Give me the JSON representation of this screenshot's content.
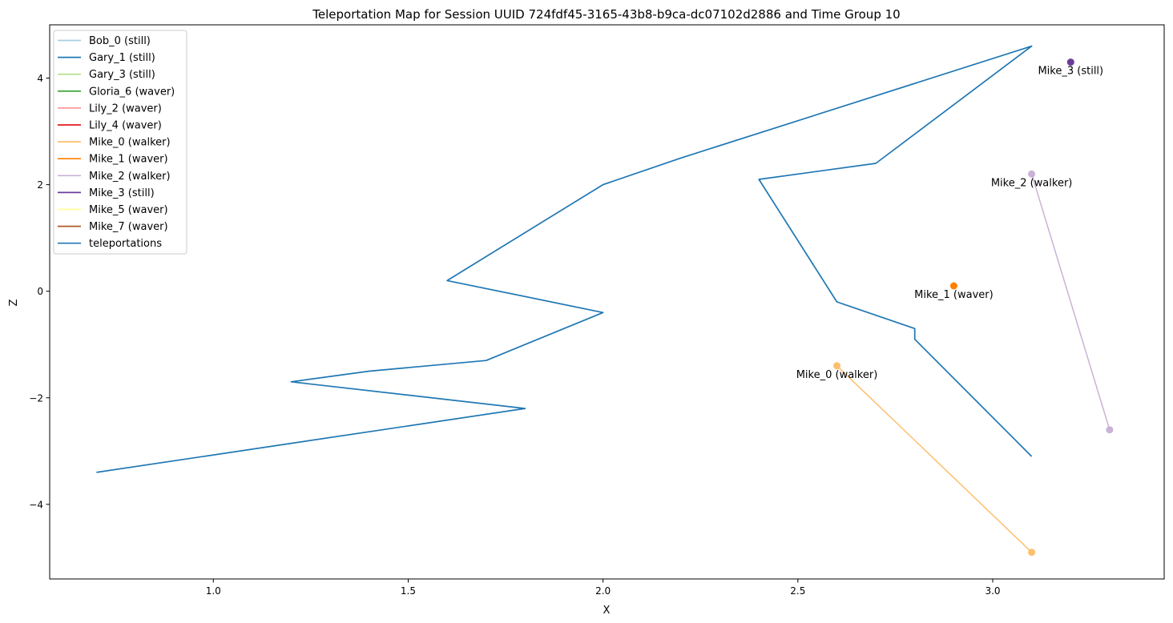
{
  "chart_data": {
    "type": "line",
    "title": "Teleportation Map for Session UUID 724fdf45-3165-43b8-b9ca-dc07102d2886 and Time Group 10",
    "xlabel": "X",
    "ylabel": "Z",
    "xlim": [
      0.58,
      3.44
    ],
    "ylim": [
      -5.4,
      5.0
    ],
    "xticks": [
      1.0,
      1.5,
      2.0,
      2.5,
      3.0
    ],
    "xtick_labels": [
      "1.0",
      "1.5",
      "2.0",
      "2.5",
      "3.0"
    ],
    "yticks": [
      -4,
      -2,
      0,
      2,
      4
    ],
    "ytick_labels": [
      "−4",
      "−2",
      "0",
      "2",
      "4"
    ],
    "grid": false,
    "legend_position": "top-left",
    "series": [
      {
        "name": "Bob_0 (still)",
        "color": "#a6cee3",
        "points": []
      },
      {
        "name": "Gary_1 (still)",
        "color": "#1f78b4",
        "points": []
      },
      {
        "name": "Gary_3 (still)",
        "color": "#b2df8a",
        "points": []
      },
      {
        "name": "Gloria_6 (waver)",
        "color": "#33a02c",
        "points": []
      },
      {
        "name": "Lily_2 (waver)",
        "color": "#fb9a99",
        "points": []
      },
      {
        "name": "Lily_4 (waver)",
        "color": "#e31a1c",
        "points": []
      },
      {
        "name": "Mike_0 (walker)",
        "color": "#fdbf6f",
        "points": [
          [
            2.6,
            -1.4
          ],
          [
            3.1,
            -4.9
          ]
        ]
      },
      {
        "name": "Mike_1 (waver)",
        "color": "#ff7f00",
        "points": [
          [
            2.9,
            0.1
          ]
        ]
      },
      {
        "name": "Mike_2 (walker)",
        "color": "#cab2d6",
        "points": [
          [
            3.1,
            2.2
          ],
          [
            3.3,
            -2.6
          ]
        ]
      },
      {
        "name": "Mike_3 (still)",
        "color": "#6a3d9a",
        "points": [
          [
            3.2,
            4.3
          ]
        ]
      },
      {
        "name": "Mike_5 (waver)",
        "color": "#ffff99",
        "points": []
      },
      {
        "name": "Mike_7 (waver)",
        "color": "#b15928",
        "points": []
      },
      {
        "name": "teleportations",
        "color": "#1f77b4",
        "points": [
          [
            0.7,
            -3.4
          ],
          [
            1.8,
            -2.2
          ],
          [
            1.2,
            -1.7
          ],
          [
            1.4,
            -1.5
          ],
          [
            1.7,
            -1.3
          ],
          [
            2.0,
            -0.4
          ],
          [
            1.6,
            0.2
          ],
          [
            2.0,
            2.0
          ],
          [
            2.2,
            2.5
          ],
          [
            3.1,
            4.6
          ],
          [
            2.7,
            2.4
          ],
          [
            2.4,
            2.1
          ],
          [
            2.6,
            -0.2
          ],
          [
            2.8,
            -0.7
          ],
          [
            2.8,
            -0.9
          ],
          [
            3.1,
            -3.1
          ]
        ]
      }
    ],
    "annotations": [
      {
        "text": "Mike_3 (still)",
        "x": 3.2,
        "y": 4.3,
        "series": "Mike_3 (still)"
      },
      {
        "text": "Mike_2 (walker)",
        "x": 3.1,
        "y": 2.2,
        "series": "Mike_2 (walker)"
      },
      {
        "text": "Mike_1 (waver)",
        "x": 2.9,
        "y": 0.1,
        "series": "Mike_1 (waver)"
      },
      {
        "text": "Mike_0 (walker)",
        "x": 2.6,
        "y": -1.4,
        "series": "Mike_0 (walker)"
      }
    ]
  }
}
